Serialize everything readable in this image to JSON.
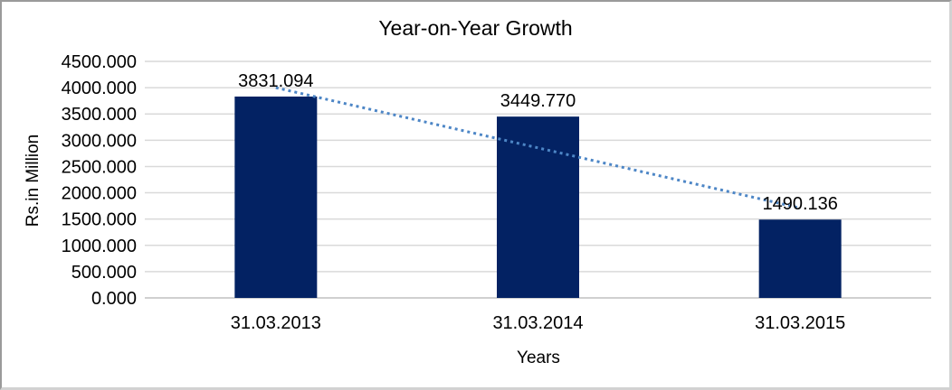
{
  "chart_data": {
    "type": "bar",
    "title": "Year-on-Year Growth",
    "xlabel": "Years",
    "ylabel": "Rs.in Million",
    "categories": [
      "31.03.2013",
      "31.03.2014",
      "31.03.2015"
    ],
    "values": [
      3831.094,
      3449.77,
      1490.136
    ],
    "data_labels": [
      "3831.094",
      "3449.770",
      "1490.136"
    ],
    "ylim": [
      0,
      4500
    ],
    "ytick_step": 500,
    "ytick_labels": [
      "4500.000",
      "4000.000",
      "3500.000",
      "3000.000",
      "2500.000",
      "2000.000",
      "1500.000",
      "1000.000",
      "500.000",
      "0.000"
    ],
    "grid": true,
    "legend": "none",
    "bar_color": "#032263",
    "trendline": {
      "style": "dotted",
      "color": "#4d86c6",
      "x": [
        0,
        2
      ],
      "values": [
        4000,
        1710
      ]
    }
  },
  "colors": {
    "background": "#ffffff",
    "gridline": "#d9d9d9",
    "axis_line": "#c0c0c0",
    "text": "#000000",
    "frame_border": "#9a9a9a"
  }
}
